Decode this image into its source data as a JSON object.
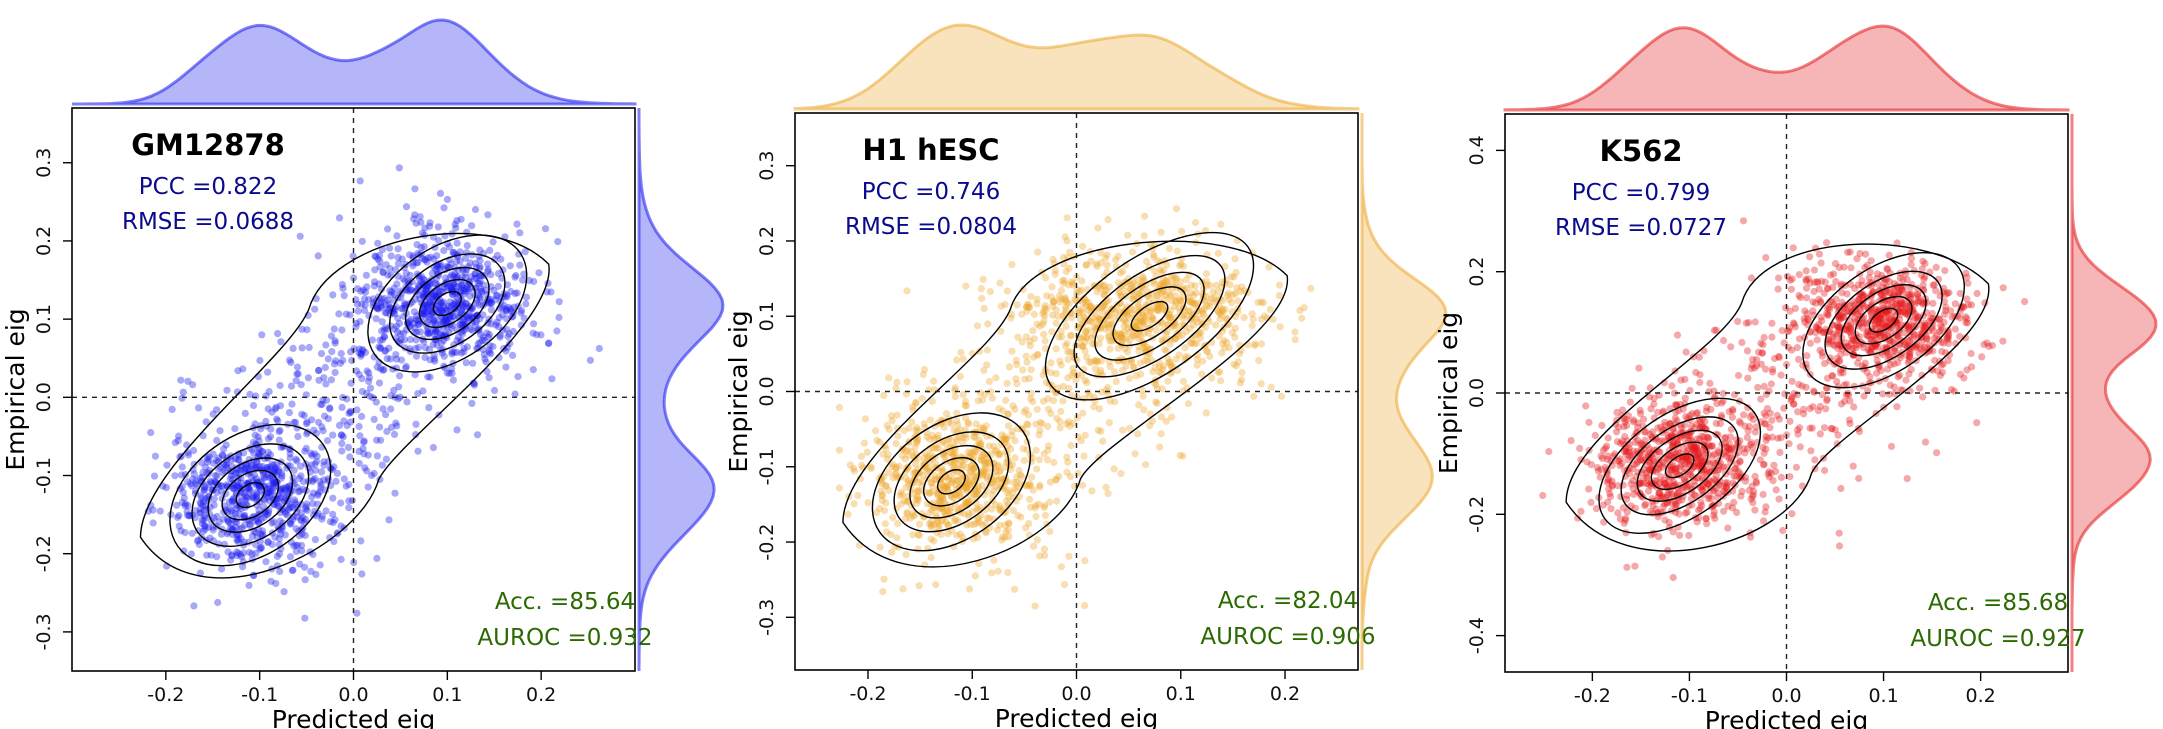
{
  "chart_data": [
    {
      "type": "scatter",
      "title": "GM12878",
      "xlabel": "Predicted eig",
      "ylabel": "Empirical eig",
      "color": "#1a1aee",
      "xlim": [
        -0.3,
        0.3
      ],
      "ylim": [
        -0.35,
        0.37
      ],
      "xticks": [
        -0.2,
        -0.1,
        0.0,
        0.1,
        0.2
      ],
      "xtick_labels": [
        "-0.2",
        "-0.1",
        "0.0",
        "0.1",
        "0.2"
      ],
      "yticks": [
        -0.3,
        -0.2,
        -0.1,
        0.0,
        0.1,
        0.2,
        0.3
      ],
      "ytick_labels": [
        "-0.3",
        "-0.2",
        "-0.1",
        "0.0",
        "0.1",
        "0.2",
        "0.3"
      ],
      "pcc": "PCC =0.822",
      "rmse": "RMSE =0.0688",
      "acc": "Acc. =85.64",
      "auroc": "AUROC =0.932",
      "clusters": [
        {
          "x": -0.11,
          "y": -0.125,
          "sx": 0.045,
          "sy": 0.045,
          "weight": 0.48
        },
        {
          "x": 0.1,
          "y": 0.12,
          "sx": 0.045,
          "sy": 0.042,
          "weight": 0.52
        }
      ],
      "spread": 0.05
    },
    {
      "type": "scatter",
      "title": "H1 hESC",
      "xlabel": "Predicted eig",
      "ylabel": "Empirical eig",
      "color": "#eca730",
      "xlim": [
        -0.27,
        0.27
      ],
      "ylim": [
        -0.37,
        0.37
      ],
      "xticks": [
        -0.2,
        -0.1,
        0.0,
        0.1,
        0.2
      ],
      "xtick_labels": [
        "-0.2",
        "-0.1",
        "0.0",
        "0.1",
        "0.2"
      ],
      "yticks": [
        -0.3,
        -0.2,
        -0.1,
        0.0,
        0.1,
        0.2,
        0.3
      ],
      "ytick_labels": [
        "-0.3",
        "-0.2",
        "-0.1",
        "0.0",
        "0.1",
        "0.2",
        "0.3"
      ],
      "pcc": "PCC =0.746",
      "rmse": "RMSE =0.0804",
      "acc": "Acc. =82.04",
      "auroc": "AUROC =0.906",
      "clusters": [
        {
          "x": -0.12,
          "y": -0.12,
          "sx": 0.04,
          "sy": 0.045,
          "weight": 0.45
        },
        {
          "x": 0.07,
          "y": 0.1,
          "sx": 0.055,
          "sy": 0.045,
          "weight": 0.55
        }
      ],
      "spread": 0.055
    },
    {
      "type": "scatter",
      "title": "K562",
      "xlabel": "Predicted eig",
      "ylabel": "Empirical eig",
      "color": "#e41a1c",
      "xlim": [
        -0.29,
        0.29
      ],
      "ylim": [
        -0.46,
        0.46
      ],
      "xticks": [
        -0.2,
        -0.1,
        0.0,
        0.1,
        0.2
      ],
      "xtick_labels": [
        "-0.2",
        "-0.1",
        "0.0",
        "0.1",
        "0.2"
      ],
      "yticks": [
        -0.4,
        -0.2,
        0.0,
        0.2,
        0.4
      ],
      "ytick_labels": [
        "-0.4",
        "-0.2",
        "0.0",
        "0.2",
        "0.4"
      ],
      "pcc": "PCC =0.799",
      "rmse": "RMSE =0.0727",
      "acc": "Acc. =85.68",
      "auroc": "AUROC =0.927",
      "clusters": [
        {
          "x": -0.11,
          "y": -0.12,
          "sx": 0.045,
          "sy": 0.05,
          "weight": 0.47
        },
        {
          "x": 0.1,
          "y": 0.12,
          "sx": 0.045,
          "sy": 0.05,
          "weight": 0.53
        }
      ],
      "spread": 0.055
    }
  ]
}
